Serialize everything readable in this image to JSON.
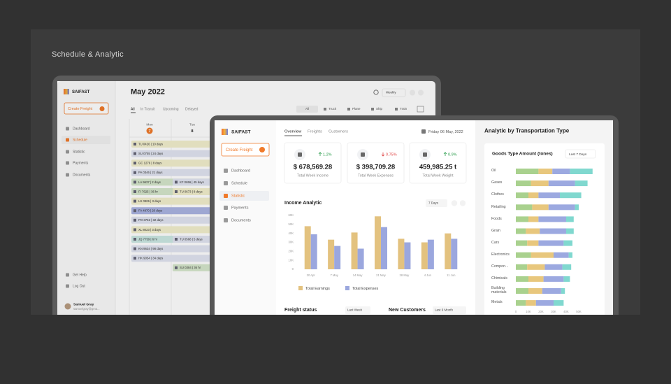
{
  "page_title": "Schedule & Analytic",
  "schedule_screen": {
    "brand": "SAIFAST",
    "create_button": "Create Freight",
    "menu": [
      "Dashboard",
      "Schedule",
      "Statistic",
      "Payments",
      "Documents"
    ],
    "footer_menu": [
      "Get Help",
      "Log Out"
    ],
    "user": {
      "name": "Samuel Gray",
      "email": "samuelgray@gma..."
    },
    "title": "May 2022",
    "tabs": [
      "All",
      "In Transit",
      "Upcoming",
      "Delayed"
    ],
    "view": "Weekly",
    "filters": [
      "All",
      "Truck",
      "Plane",
      "Ship",
      "Train"
    ],
    "days": [
      {
        "name": "Mon",
        "date": "7"
      },
      {
        "name": "Tue",
        "date": "8"
      }
    ],
    "shipments": [
      "TU 0426 | 10 days",
      "SU 0755 | 24 days",
      "GC 1276 | 8 days",
      "PA 0346 | 21 days",
      "LA 9637 | 2 days",
      "KF 0656 | 45 days",
      "FI 7625 | 36 hr",
      "TU 0673 | 8 days",
      "LS 0906 | 3 days",
      "FA 4970 | 20 days",
      "PO 3752 | 32 days",
      "XL 8023 | 3 days",
      "JQ 7759 | 6 hr",
      "TU 0568 | 5 days",
      "KN 9634 | 98 days",
      "HK 9054 | 34 days",
      "SU 0384 | 36 hr"
    ]
  },
  "statistic_screen": {
    "brand": "SAIFAST",
    "create_button": "Create Freight",
    "menu": [
      "Dashboard",
      "Schedule",
      "Statistic",
      "Payments",
      "Documents"
    ],
    "nav": [
      "Overview",
      "Freights",
      "Customers"
    ],
    "date": "Friday 06 May, 2022",
    "section_title": "Analytic by Transportation Type",
    "cards": [
      {
        "change": "1.2%",
        "trend": "up",
        "value": "$ 678,569.28",
        "label": "Total Week Income"
      },
      {
        "change": "0.75%",
        "trend": "down",
        "value": "$ 398,709.28",
        "label": "Total Week Expenses"
      },
      {
        "change": "0.9%",
        "trend": "up",
        "value": "459,985.25 t",
        "label": "Total Week Weight"
      }
    ],
    "bottom_panels": [
      {
        "title": "Freight status",
        "period": "Last Week"
      },
      {
        "title": "New Customers",
        "period": "Last 6 Month"
      }
    ]
  },
  "chart_data": [
    {
      "type": "bar",
      "title": "Income Analytic",
      "period": "7 Days",
      "categories": [
        "30 Apr",
        "7 May",
        "14 May",
        "21 May",
        "28 May",
        "4 Jun",
        "11 Jun"
      ],
      "series": [
        {
          "name": "Total Earnings",
          "color": "#e3c27f",
          "values": [
            48000,
            33000,
            41000,
            59000,
            34000,
            30000,
            40000
          ]
        },
        {
          "name": "Total Expenses",
          "color": "#9ba7de",
          "values": [
            39000,
            26000,
            23000,
            47000,
            30000,
            33000,
            34000
          ]
        }
      ],
      "ylim": [
        0,
        60000
      ],
      "yticks": [
        0,
        {
          "value": 10000,
          "label": "10K"
        },
        {
          "value": 20000,
          "label": "20K"
        },
        {
          "value": 30000,
          "label": "30K"
        },
        {
          "value": 40000,
          "label": "40K"
        },
        {
          "value": 50000,
          "label": "50K"
        },
        {
          "value": 60000,
          "label": "60K"
        }
      ],
      "grid": false
    },
    {
      "type": "stacked-hbar",
      "title": "Goods Type Amount (tones)",
      "period": "Last 7 Days",
      "categories": [
        "Oil",
        "Gases",
        "Clothes",
        "Retailing",
        "Foods",
        "Grain",
        "Cars",
        "Electronics",
        "Compon...",
        "Chimicals",
        "Building materials",
        "Metals"
      ],
      "series": [
        {
          "color": "#a9d18e",
          "values": [
            18000,
            12000,
            10000,
            13000,
            10000,
            8000,
            9000,
            12000,
            9000,
            10000,
            10000,
            8000
          ]
        },
        {
          "color": "#e8c77d",
          "values": [
            11000,
            14000,
            8000,
            13000,
            8000,
            11000,
            9000,
            18000,
            14000,
            12000,
            11000,
            8000
          ]
        },
        {
          "color": "#9ca9e0",
          "values": [
            14000,
            21000,
            17000,
            21000,
            22000,
            21000,
            20000,
            12000,
            14000,
            16000,
            15000,
            14000
          ]
        },
        {
          "color": "#80d8cf",
          "values": [
            18000,
            10000,
            17000,
            3000,
            6000,
            6000,
            7000,
            3000,
            7000,
            5000,
            3000,
            8000
          ]
        }
      ],
      "xlim": [
        0,
        65000
      ],
      "xticks": [
        0,
        {
          "value": 10000,
          "label": "10K"
        },
        {
          "value": 20000,
          "label": "20K"
        },
        {
          "value": 30000,
          "label": "30K"
        },
        {
          "value": 40000,
          "label": "40K"
        },
        {
          "value": 50000,
          "label": "50K"
        }
      ]
    }
  ]
}
